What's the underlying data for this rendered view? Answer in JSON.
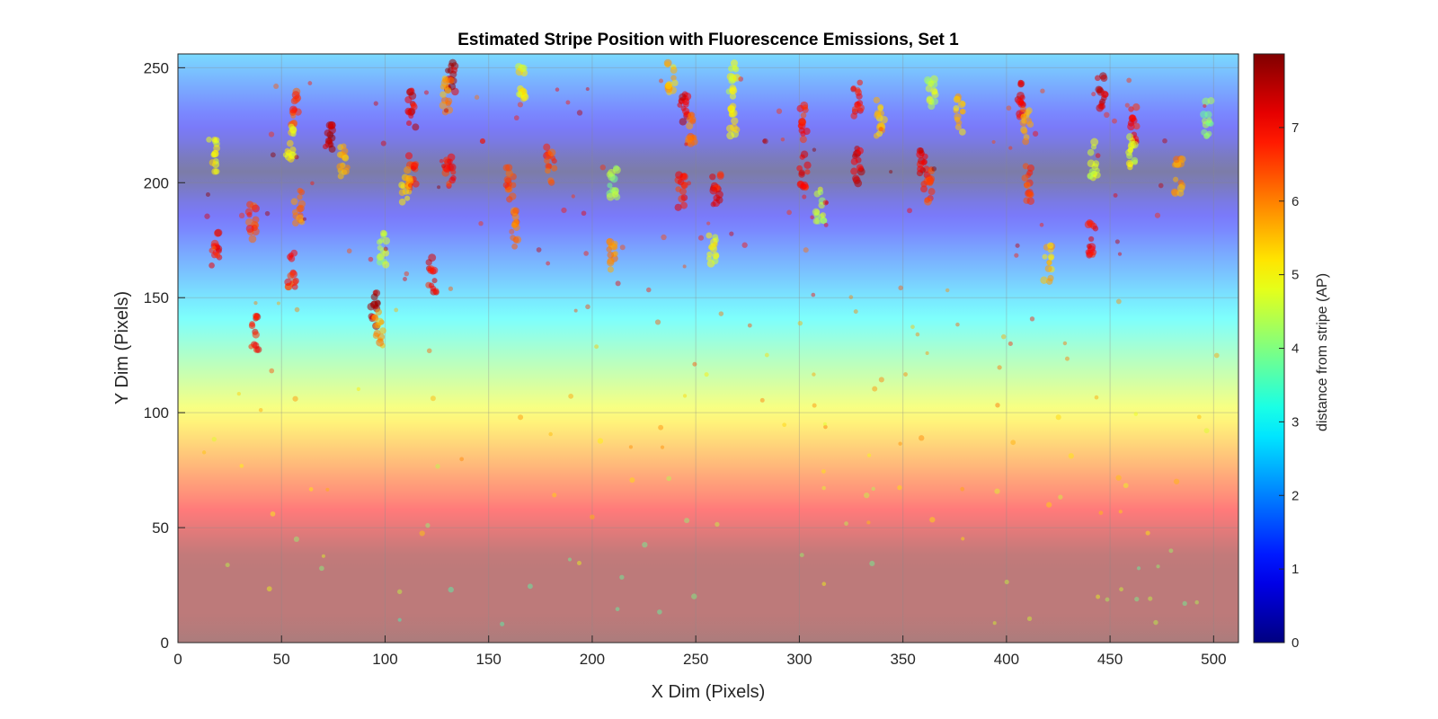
{
  "chart_data": {
    "type": "scatter",
    "title": "Estimated Stripe Position with Fluorescence Emissions, Set 1",
    "xlabel": "X Dim (Pixels)",
    "ylabel": "Y Dim (Pixels)",
    "xlim": [
      0,
      512
    ],
    "ylim": [
      0,
      256
    ],
    "xticks": [
      "0",
      "50",
      "100",
      "150",
      "200",
      "250",
      "300",
      "350",
      "400",
      "450",
      "500"
    ],
    "yticks": [
      "0",
      "50",
      "100",
      "150",
      "200",
      "250"
    ],
    "grid": true,
    "background_stripe_center_y": 205,
    "colorbar": {
      "label": "distance from stripe (AP)",
      "range": [
        0,
        8
      ],
      "ticks": [
        "0",
        "1",
        "2",
        "3",
        "4",
        "5",
        "6",
        "7"
      ],
      "colormap": "jet"
    },
    "clusters": [
      {
        "x": 17,
        "y": 212,
        "d": 5.0
      },
      {
        "x": 18,
        "y": 172,
        "d": 7.0
      },
      {
        "x": 36,
        "y": 183,
        "d": 6.5
      },
      {
        "x": 37,
        "y": 135,
        "d": 7.0
      },
      {
        "x": 56,
        "y": 232,
        "d": 6.5
      },
      {
        "x": 54,
        "y": 218,
        "d": 5.0
      },
      {
        "x": 58,
        "y": 190,
        "d": 6.0
      },
      {
        "x": 55,
        "y": 162,
        "d": 6.8
      },
      {
        "x": 73,
        "y": 220,
        "d": 7.5
      },
      {
        "x": 80,
        "y": 210,
        "d": 5.5
      },
      {
        "x": 95,
        "y": 145,
        "d": 7.5
      },
      {
        "x": 97,
        "y": 136,
        "d": 5.8
      },
      {
        "x": 99,
        "y": 172,
        "d": 4.5
      },
      {
        "x": 113,
        "y": 232,
        "d": 7.2
      },
      {
        "x": 113,
        "y": 205,
        "d": 6.8
      },
      {
        "x": 110,
        "y": 198,
        "d": 5.5
      },
      {
        "x": 123,
        "y": 160,
        "d": 7.0
      },
      {
        "x": 132,
        "y": 247,
        "d": 7.5
      },
      {
        "x": 130,
        "y": 238,
        "d": 5.8
      },
      {
        "x": 131,
        "y": 206,
        "d": 6.8
      },
      {
        "x": 160,
        "y": 200,
        "d": 6.5
      },
      {
        "x": 162,
        "y": 180,
        "d": 6.2
      },
      {
        "x": 166,
        "y": 243,
        "d": 5.0
      },
      {
        "x": 180,
        "y": 208,
        "d": 6.5
      },
      {
        "x": 210,
        "y": 200,
        "d": 4.2
      },
      {
        "x": 210,
        "y": 170,
        "d": 6.0
      },
      {
        "x": 238,
        "y": 246,
        "d": 5.5
      },
      {
        "x": 244,
        "y": 232,
        "d": 7.3
      },
      {
        "x": 248,
        "y": 222,
        "d": 6.0
      },
      {
        "x": 243,
        "y": 196,
        "d": 6.8
      },
      {
        "x": 260,
        "y": 198,
        "d": 7.0
      },
      {
        "x": 258,
        "y": 170,
        "d": 5.0
      },
      {
        "x": 268,
        "y": 245,
        "d": 4.8
      },
      {
        "x": 268,
        "y": 228,
        "d": 5.0
      },
      {
        "x": 302,
        "y": 226,
        "d": 6.8
      },
      {
        "x": 302,
        "y": 205,
        "d": 7.0
      },
      {
        "x": 310,
        "y": 190,
        "d": 4.5
      },
      {
        "x": 328,
        "y": 207,
        "d": 7.3
      },
      {
        "x": 328,
        "y": 237,
        "d": 7.0
      },
      {
        "x": 339,
        "y": 228,
        "d": 5.5
      },
      {
        "x": 360,
        "y": 208,
        "d": 7.2
      },
      {
        "x": 362,
        "y": 198,
        "d": 6.5
      },
      {
        "x": 364,
        "y": 238,
        "d": 4.5
      },
      {
        "x": 377,
        "y": 230,
        "d": 5.5
      },
      {
        "x": 407,
        "y": 236,
        "d": 7.2
      },
      {
        "x": 410,
        "y": 225,
        "d": 5.8
      },
      {
        "x": 410,
        "y": 200,
        "d": 6.5
      },
      {
        "x": 420,
        "y": 165,
        "d": 5.5
      },
      {
        "x": 442,
        "y": 210,
        "d": 4.5
      },
      {
        "x": 461,
        "y": 225,
        "d": 7.0
      },
      {
        "x": 461,
        "y": 212,
        "d": 4.8
      },
      {
        "x": 483,
        "y": 203,
        "d": 5.8
      },
      {
        "x": 497,
        "y": 228,
        "d": 4.2
      },
      {
        "x": 446,
        "y": 240,
        "d": 7.3
      },
      {
        "x": 441,
        "y": 176,
        "d": 7.0
      }
    ]
  }
}
